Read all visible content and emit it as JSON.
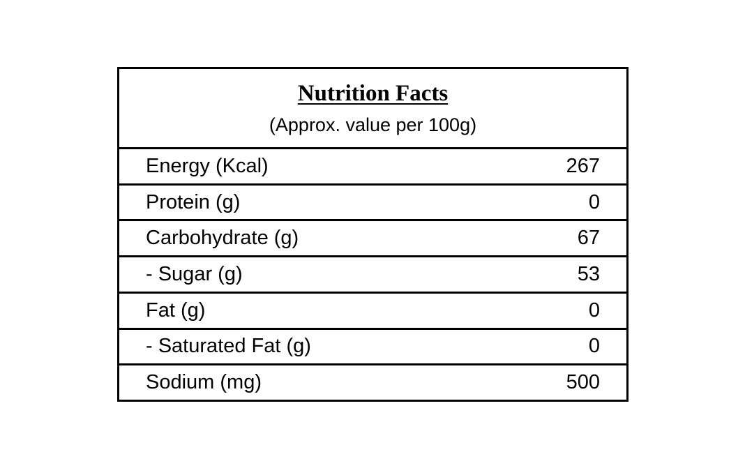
{
  "panel": {
    "title": "Nutrition Facts",
    "subtitle": "(Approx. value per 100g)",
    "rows": [
      {
        "label": "Energy (Kcal)",
        "value": "267"
      },
      {
        "label": "Protein (g)",
        "value": "0"
      },
      {
        "label": "Carbohydrate (g)",
        "value": "67"
      },
      {
        "label": "- Sugar (g)",
        "value": "53"
      },
      {
        "label": "Fat (g)",
        "value": "0"
      },
      {
        "label": "- Saturated Fat (g)",
        "value": "0"
      },
      {
        "label": "Sodium (mg)",
        "value": "500"
      }
    ]
  }
}
